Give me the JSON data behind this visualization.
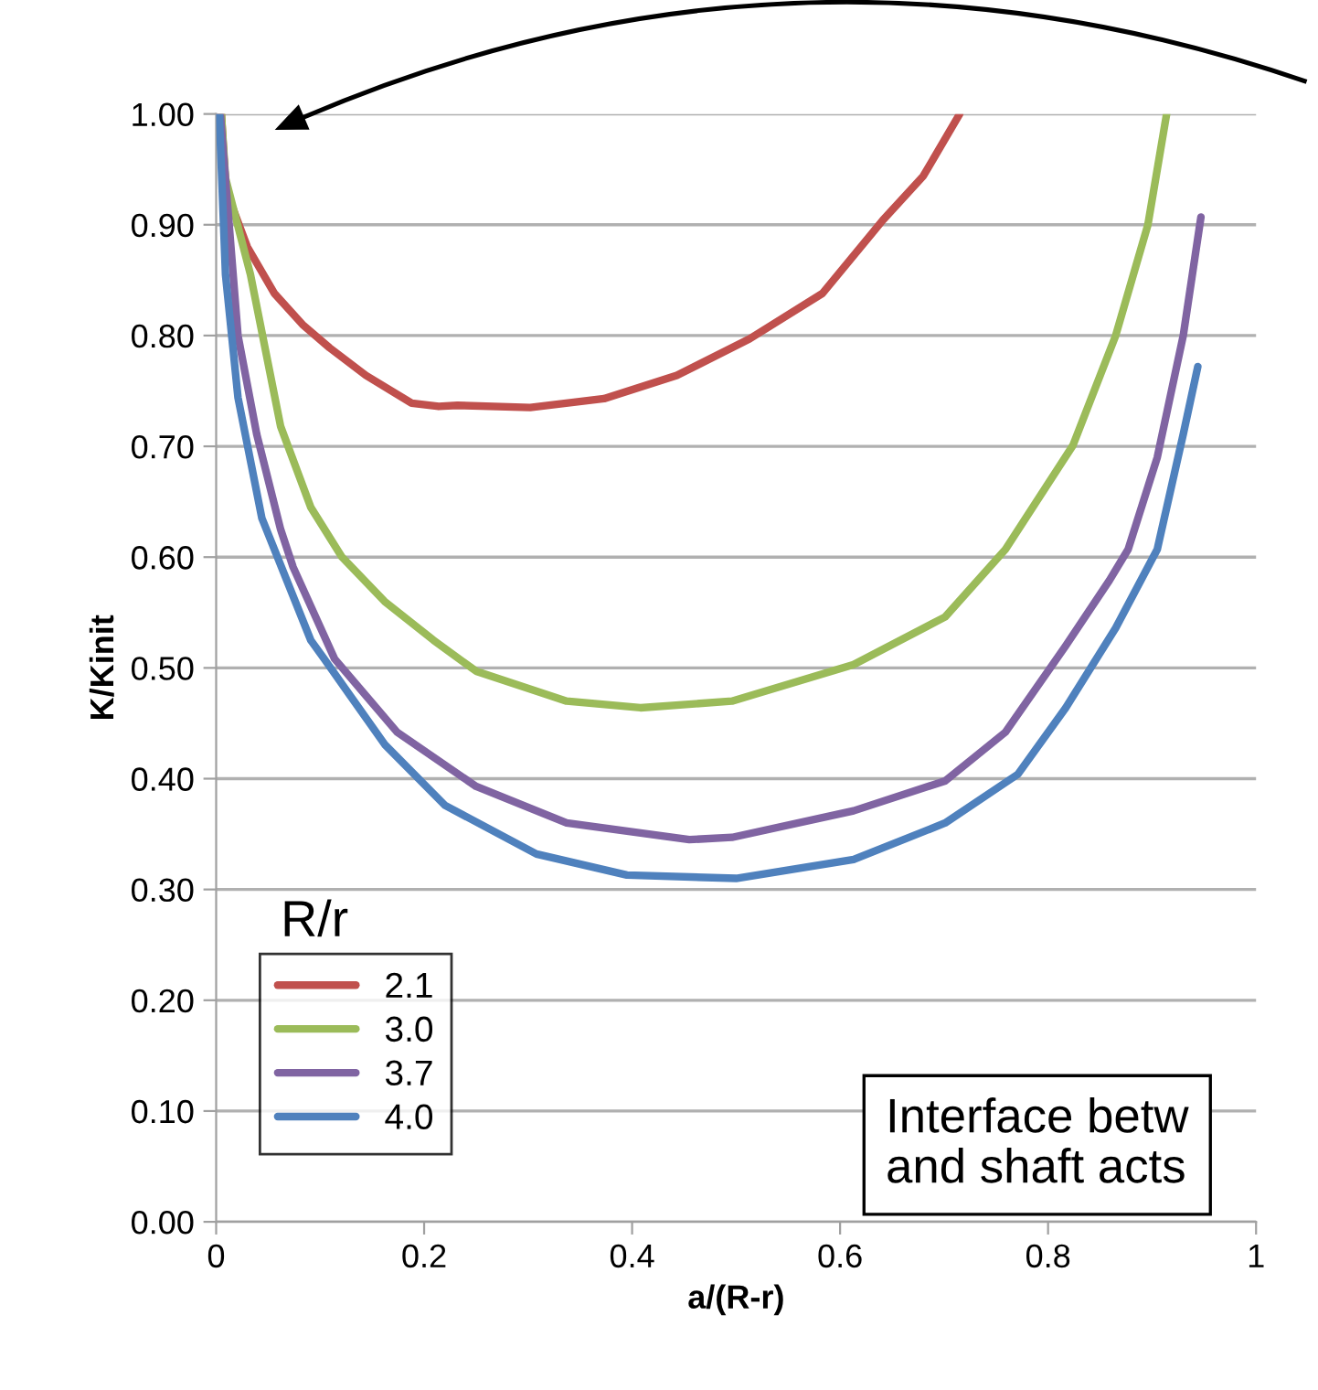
{
  "chart_data": {
    "type": "line",
    "xlabel": "a/(R-r)",
    "ylabel": "K/Kinit",
    "legend_title": "R/r",
    "legend": "bottom left",
    "grid": "y",
    "marker": "none",
    "line_style": "solid",
    "xlim": [
      0,
      1
    ],
    "xticks": [
      0,
      0.2,
      0.4,
      0.6,
      0.8,
      1
    ],
    "ylim": [
      0,
      1
    ],
    "yticks": [
      {
        "value": 0,
        "label": "0.00"
      },
      {
        "value": 0.1,
        "label": "0.10"
      },
      {
        "value": 0.2,
        "label": "0.20"
      },
      {
        "value": 0.3,
        "label": "0.30"
      },
      {
        "value": 0.4,
        "label": "0.40"
      },
      {
        "value": 0.5,
        "label": "0.50"
      },
      {
        "value": 0.6,
        "label": "0.60"
      },
      {
        "value": 0.7,
        "label": "0.70"
      },
      {
        "value": 0.8,
        "label": "0.80"
      },
      {
        "value": 0.9,
        "label": "0.90"
      },
      {
        "value": 1,
        "label": "1.00"
      }
    ],
    "annotations": [
      "Interface betw\nand shaft acts"
    ],
    "series": [
      {
        "name": "2.1",
        "color": "#c0504d",
        "x": [
          0.005,
          0.009,
          0.014,
          0.03,
          0.056,
          0.083,
          0.109,
          0.144,
          0.188,
          0.214,
          0.232,
          0.302,
          0.373,
          0.443,
          0.513,
          0.583,
          0.641,
          0.68,
          0.715
        ],
        "values": [
          1.0,
          0.937,
          0.92,
          0.88,
          0.838,
          0.81,
          0.789,
          0.764,
          0.739,
          0.736,
          0.737,
          0.735,
          0.743,
          0.764,
          0.797,
          0.838,
          0.904,
          0.944,
          1.0
        ]
      },
      {
        "name": "3.0",
        "color": "#9bbb59",
        "x": [
          0.005,
          0.009,
          0.033,
          0.062,
          0.091,
          0.121,
          0.162,
          0.209,
          0.25,
          0.337,
          0.408,
          0.496,
          0.613,
          0.701,
          0.759,
          0.824,
          0.865,
          0.896,
          0.914
        ],
        "values": [
          1.0,
          0.942,
          0.855,
          0.718,
          0.645,
          0.6,
          0.56,
          0.525,
          0.497,
          0.47,
          0.464,
          0.47,
          0.503,
          0.546,
          0.607,
          0.701,
          0.8,
          0.9,
          1.0
        ]
      },
      {
        "name": "3.7",
        "color": "#8064a2",
        "x": [
          0.004,
          0.021,
          0.039,
          0.062,
          0.074,
          0.114,
          0.174,
          0.25,
          0.337,
          0.455,
          0.496,
          0.613,
          0.701,
          0.759,
          0.817,
          0.859,
          0.877,
          0.905,
          0.93,
          0.947
        ],
        "values": [
          1.0,
          0.8,
          0.711,
          0.625,
          0.591,
          0.508,
          0.442,
          0.393,
          0.36,
          0.345,
          0.347,
          0.371,
          0.398,
          0.442,
          0.52,
          0.579,
          0.607,
          0.69,
          0.8,
          0.907
        ]
      },
      {
        "name": "4.0",
        "color": "#4f81bd",
        "x": [
          0.003,
          0.009,
          0.021,
          0.044,
          0.091,
          0.104,
          0.162,
          0.22,
          0.308,
          0.395,
          0.5,
          0.613,
          0.701,
          0.771,
          0.817,
          0.865,
          0.905,
          0.93,
          0.944
        ],
        "values": [
          1.0,
          0.855,
          0.744,
          0.635,
          0.525,
          0.508,
          0.431,
          0.376,
          0.332,
          0.313,
          0.31,
          0.327,
          0.36,
          0.404,
          0.464,
          0.536,
          0.607,
          0.711,
          0.772
        ]
      }
    ]
  }
}
